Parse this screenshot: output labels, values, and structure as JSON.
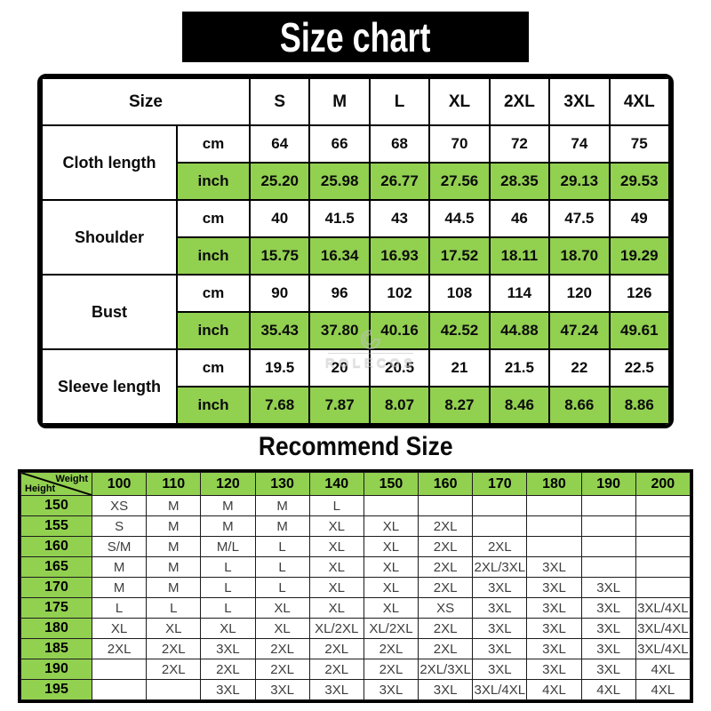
{
  "colors": {
    "highlight_green": "#92d050",
    "banner_bg": "#000000",
    "banner_fg": "#ffffff",
    "grid": "#000000",
    "recommend_cell_text": "#3d3d3d"
  },
  "watermark": {
    "text": "ROLECOS"
  },
  "chart_data": [
    {
      "type": "table",
      "title": "Size chart",
      "header": [
        "Size",
        "S",
        "M",
        "L",
        "XL",
        "2XL",
        "3XL",
        "4XL"
      ],
      "unit_labels": {
        "cm": "cm",
        "inch": "inch"
      },
      "measurements": [
        {
          "label": "Cloth length",
          "cm": [
            "64",
            "66",
            "68",
            "70",
            "72",
            "74",
            "75"
          ],
          "inch": [
            "25.20",
            "25.98",
            "26.77",
            "27.56",
            "28.35",
            "29.13",
            "29.53"
          ]
        },
        {
          "label": "Shoulder",
          "cm": [
            "40",
            "41.5",
            "43",
            "44.5",
            "46",
            "47.5",
            "49"
          ],
          "inch": [
            "15.75",
            "16.34",
            "16.93",
            "17.52",
            "18.11",
            "18.70",
            "19.29"
          ]
        },
        {
          "label": "Bust",
          "cm": [
            "90",
            "96",
            "102",
            "108",
            "114",
            "120",
            "126"
          ],
          "inch": [
            "35.43",
            "37.80",
            "40.16",
            "42.52",
            "44.88",
            "47.24",
            "49.61"
          ]
        },
        {
          "label": "Sleeve length",
          "cm": [
            "19.5",
            "20",
            "20.5",
            "21",
            "21.5",
            "22",
            "22.5"
          ],
          "inch": [
            "7.68",
            "7.87",
            "8.07",
            "8.27",
            "8.46",
            "8.66",
            "8.86"
          ]
        }
      ]
    },
    {
      "type": "table",
      "title": "Recommend Size",
      "corner": {
        "top": "Weight",
        "bottom": "Height"
      },
      "weight_columns": [
        "100",
        "110",
        "120",
        "130",
        "140",
        "150",
        "160",
        "170",
        "180",
        "190",
        "200"
      ],
      "rows": [
        {
          "height": "150",
          "sizes": [
            "XS",
            "M",
            "M",
            "M",
            "L",
            "",
            "",
            "",
            "",
            "",
            ""
          ]
        },
        {
          "height": "155",
          "sizes": [
            "S",
            "M",
            "M",
            "M",
            "XL",
            "XL",
            "2XL",
            "",
            "",
            "",
            ""
          ]
        },
        {
          "height": "160",
          "sizes": [
            "S/M",
            "M",
            "M/L",
            "L",
            "XL",
            "XL",
            "2XL",
            "2XL",
            "",
            "",
            ""
          ]
        },
        {
          "height": "165",
          "sizes": [
            "M",
            "M",
            "L",
            "L",
            "XL",
            "XL",
            "2XL",
            "2XL/3XL",
            "3XL",
            "",
            ""
          ]
        },
        {
          "height": "170",
          "sizes": [
            "M",
            "M",
            "L",
            "L",
            "XL",
            "XL",
            "2XL",
            "3XL",
            "3XL",
            "3XL",
            ""
          ]
        },
        {
          "height": "175",
          "sizes": [
            "L",
            "L",
            "L",
            "XL",
            "XL",
            "XL",
            "XS",
            "3XL",
            "3XL",
            "3XL",
            "3XL/4XL"
          ]
        },
        {
          "height": "180",
          "sizes": [
            "XL",
            "XL",
            "XL",
            "XL",
            "XL/2XL",
            "XL/2XL",
            "2XL",
            "3XL",
            "3XL",
            "3XL",
            "3XL/4XL"
          ]
        },
        {
          "height": "185",
          "sizes": [
            "2XL",
            "2XL",
            "3XL",
            "2XL",
            "2XL",
            "2XL",
            "2XL",
            "3XL",
            "3XL",
            "3XL",
            "3XL/4XL"
          ]
        },
        {
          "height": "190",
          "sizes": [
            "",
            "2XL",
            "2XL",
            "2XL",
            "2XL",
            "2XL",
            "2XL/3XL",
            "3XL",
            "3XL",
            "3XL",
            "4XL"
          ]
        },
        {
          "height": "195",
          "sizes": [
            "",
            "",
            "3XL",
            "3XL",
            "3XL",
            "3XL",
            "3XL",
            "3XL/4XL",
            "4XL",
            "4XL",
            "4XL"
          ]
        }
      ]
    }
  ]
}
